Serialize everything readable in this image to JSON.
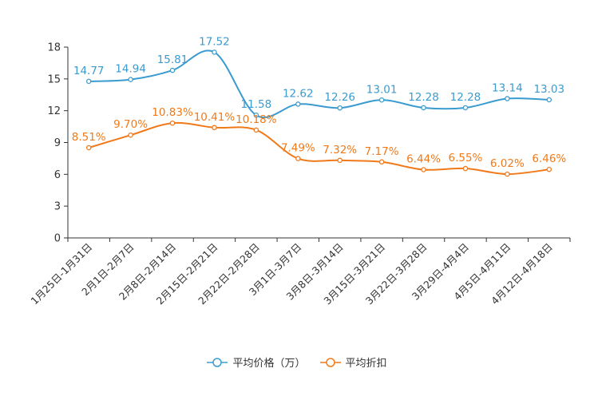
{
  "chart_data": {
    "type": "line",
    "categories": [
      "1月25日-1月31日",
      "2月1日-2月7日",
      "2月8日-2月14日",
      "2月15日-2月21日",
      "2月22日-2月28日",
      "3月1日-3月7日",
      "3月8日-3月14日",
      "3月15日-3月21日",
      "3月22日-3月28日",
      "3月29日-4月4日",
      "4月5日-4月11日",
      "4月12日-4月18日"
    ],
    "ylim": [
      0,
      18
    ],
    "yticks": [
      0,
      3,
      6,
      9,
      12,
      15,
      18
    ],
    "series": [
      {
        "name": "平均价格（万）",
        "color": "#3a9bd0",
        "values": [
          14.77,
          14.94,
          15.81,
          17.52,
          11.58,
          12.62,
          12.26,
          13.01,
          12.28,
          12.28,
          13.14,
          13.03
        ],
        "labels": [
          "14.77",
          "14.94",
          "15.81",
          "17.52",
          "11.58",
          "12.62",
          "12.26",
          "13.01",
          "12.28",
          "12.28",
          "13.14",
          "13.03"
        ]
      },
      {
        "name": "平均折扣",
        "color": "#f07a1a",
        "values": [
          8.51,
          9.7,
          10.83,
          10.41,
          10.18,
          7.49,
          7.32,
          7.17,
          6.44,
          6.55,
          6.02,
          6.46
        ],
        "labels": [
          "8.51%",
          "9.70%",
          "10.83%",
          "10.41%",
          "10.18%",
          "7.49%",
          "7.32%",
          "7.17%",
          "6.44%",
          "6.55%",
          "6.02%",
          "6.46%"
        ]
      }
    ]
  }
}
